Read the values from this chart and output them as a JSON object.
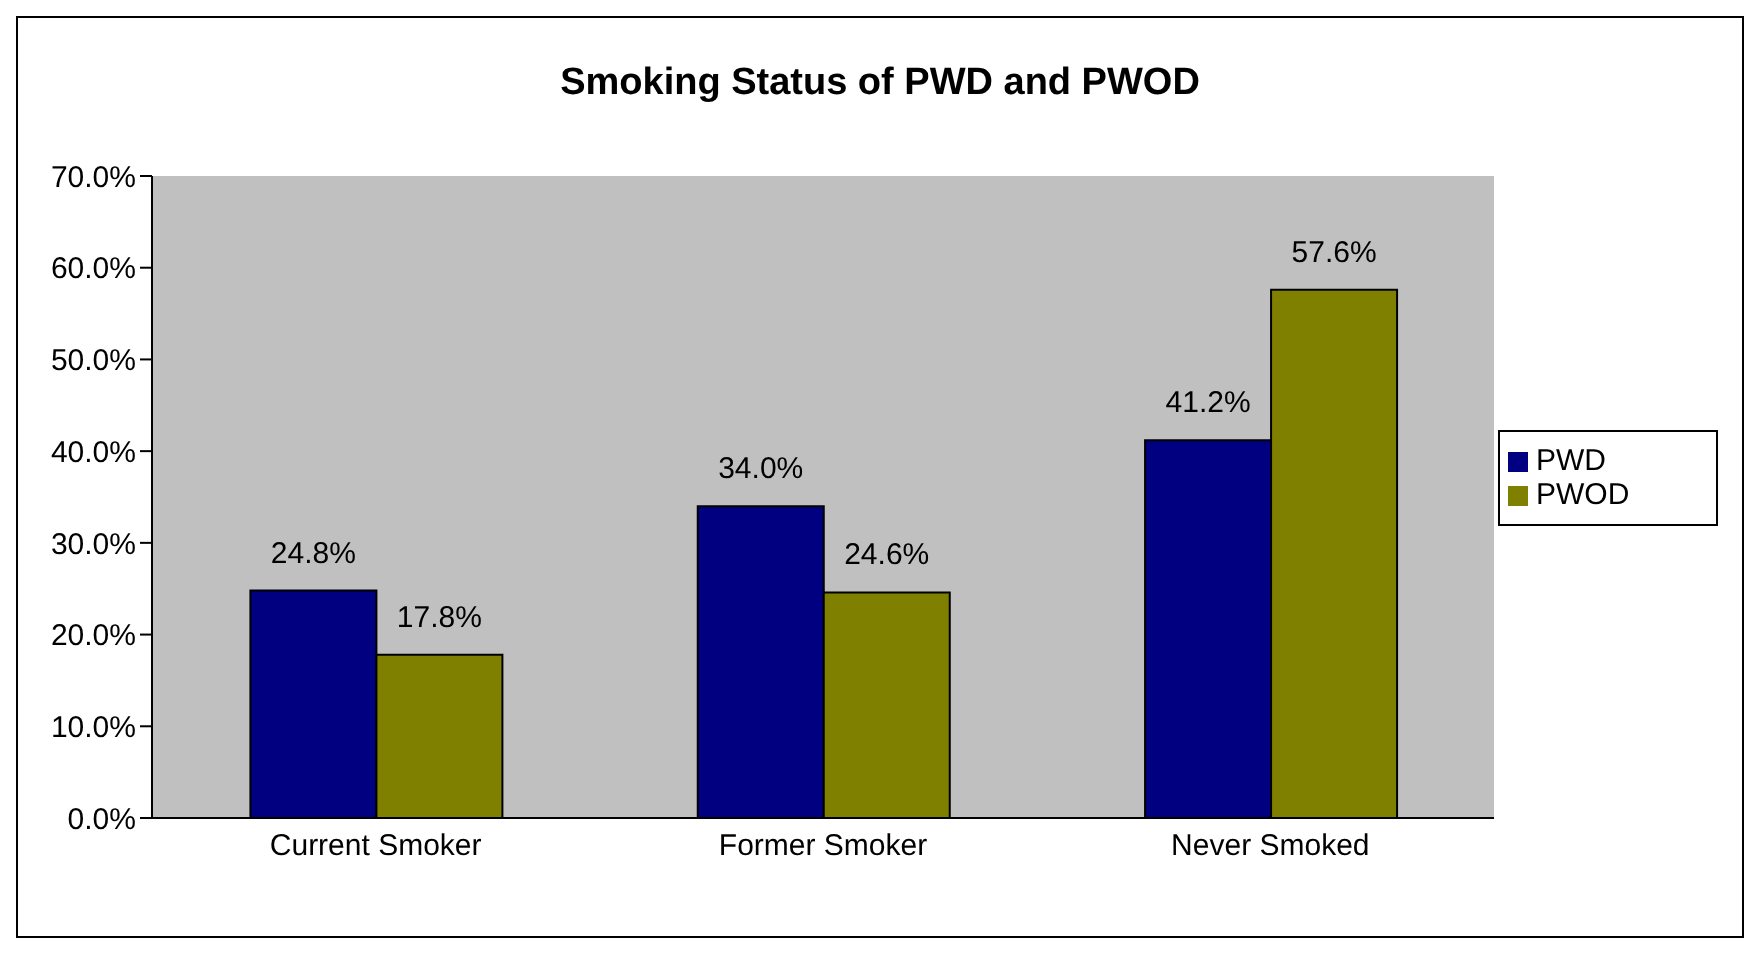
{
  "chart_data": {
    "type": "bar",
    "title": "Smoking Status of PWD and PWOD",
    "categories": [
      "Current Smoker",
      "Former Smoker",
      "Never Smoked"
    ],
    "series": [
      {
        "name": "PWD",
        "color": "#000080",
        "values": [
          24.8,
          34.0,
          41.2
        ],
        "value_labels": [
          "24.8%",
          "34.0%",
          "41.2%"
        ]
      },
      {
        "name": "PWOD",
        "color": "#808000",
        "values": [
          17.8,
          24.6,
          57.6
        ],
        "value_labels": [
          "17.8%",
          "24.6%",
          "57.6%"
        ]
      }
    ],
    "ylim": [
      0,
      70
    ],
    "yticks": [
      {
        "value": 0,
        "label": "0.0%"
      },
      {
        "value": 10,
        "label": "10.0%"
      },
      {
        "value": 20,
        "label": "20.0%"
      },
      {
        "value": 30,
        "label": "30.0%"
      },
      {
        "value": 40,
        "label": "40.0%"
      },
      {
        "value": 50,
        "label": "50.0%"
      },
      {
        "value": 60,
        "label": "60.0%"
      },
      {
        "value": 70,
        "label": "70.0%"
      }
    ],
    "grid": false,
    "legend": "right"
  }
}
